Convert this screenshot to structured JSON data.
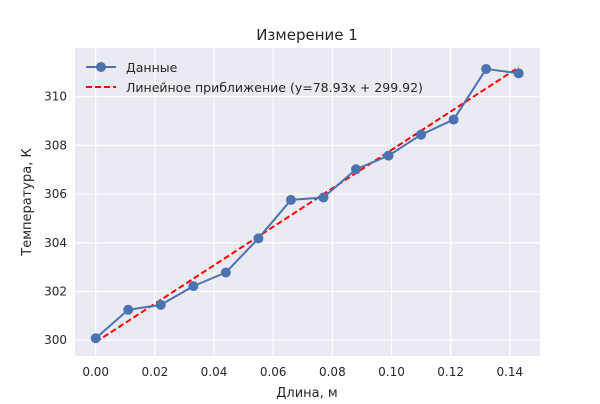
{
  "chart_data": {
    "type": "line",
    "title": "Измерение 1",
    "xlabel": "Длина, м",
    "ylabel": "Температура, К",
    "xlim": [
      -0.007,
      0.1502
    ],
    "ylim": [
      299.35,
      312.0
    ],
    "x_ticks": [
      0.0,
      0.02,
      0.04,
      0.06,
      0.08,
      0.1,
      0.12,
      0.14
    ],
    "x_tick_labels": [
      "0.00",
      "0.02",
      "0.04",
      "0.06",
      "0.08",
      "0.10",
      "0.12",
      "0.14"
    ],
    "y_ticks": [
      300,
      302,
      304,
      306,
      308,
      310
    ],
    "y_tick_labels": [
      "300",
      "302",
      "304",
      "306",
      "308",
      "310"
    ],
    "grid": true,
    "legend_position": "top-left",
    "series": [
      {
        "name": "Данные",
        "style": "line-with-markers",
        "color": "#4c72b0",
        "x": [
          0.0,
          0.011,
          0.022,
          0.033,
          0.044,
          0.055,
          0.066,
          0.077,
          0.088,
          0.099,
          0.11,
          0.121,
          0.132,
          0.143
        ],
        "y": [
          300.08,
          301.25,
          301.45,
          302.22,
          302.78,
          304.18,
          305.76,
          305.86,
          307.02,
          307.58,
          308.44,
          309.06,
          311.14,
          310.96
        ]
      },
      {
        "name": "Линейное приближение (y=78.93x + 299.92)",
        "style": "dashed-line",
        "color": "#ff0000",
        "slope": 78.93,
        "intercept": 299.92,
        "x": [
          0.0,
          0.143
        ]
      }
    ]
  },
  "colors": {
    "plot_background": "#eaeaf2",
    "grid": "#ffffff",
    "data_line": "#4c72b0",
    "fit_line": "#ff0000"
  }
}
